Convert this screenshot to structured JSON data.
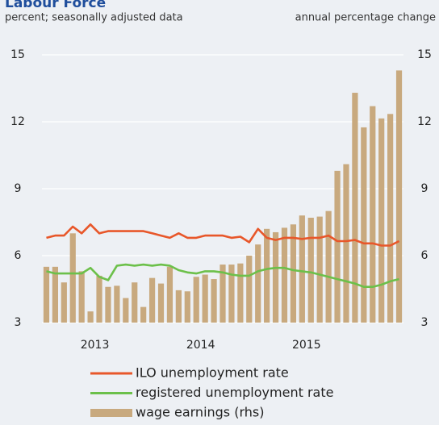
{
  "chart_data": {
    "type": "bar_line",
    "title": "Labour Force",
    "subtitle_left": "percent; seasonally adjusted data",
    "subtitle_right": "annual percentage change",
    "categories": [
      null,
      null,
      null,
      null,
      null,
      null,
      null,
      null,
      null,
      null,
      null,
      null,
      null,
      null,
      null,
      null,
      null,
      null,
      null,
      null,
      null,
      null,
      null,
      null,
      null,
      null,
      null,
      null,
      null,
      null,
      null,
      null,
      null,
      null,
      null,
      null,
      null,
      null,
      null,
      null,
      null
    ],
    "xticks": [
      {
        "value": 5.5,
        "label": "2013"
      },
      {
        "value": 17.5,
        "label": "2014"
      },
      {
        "value": 29.5,
        "label": "2015"
      }
    ],
    "ylim": [
      3,
      15
    ],
    "yticks": [
      3,
      6,
      9,
      12,
      15
    ],
    "y2lim": [
      3,
      15
    ],
    "y2ticks": [
      3,
      6,
      9,
      12,
      15
    ],
    "grid": true,
    "series": [
      {
        "name": "ILO unemployment rate",
        "type": "line",
        "color": "#e8572a",
        "values": [
          6.8,
          6.9,
          6.9,
          7.3,
          7.0,
          7.4,
          7.0,
          7.1,
          7.1,
          7.1,
          7.1,
          7.1,
          7.0,
          6.9,
          6.8,
          7.0,
          6.8,
          6.8,
          6.9,
          6.9,
          6.9,
          6.8,
          6.85,
          6.6,
          7.2,
          6.8,
          6.7,
          6.8,
          6.8,
          6.75,
          6.8,
          6.8,
          6.9,
          6.65,
          6.65,
          6.7,
          6.55,
          6.55,
          6.45,
          6.45,
          6.65
        ]
      },
      {
        "name": "registered unemployment rate",
        "type": "line",
        "color": "#6cc04a",
        "values": [
          5.3,
          5.2,
          5.2,
          5.2,
          5.2,
          5.45,
          5.05,
          4.9,
          5.55,
          5.6,
          5.55,
          5.6,
          5.55,
          5.6,
          5.55,
          5.35,
          5.25,
          5.2,
          5.3,
          5.3,
          5.25,
          5.15,
          5.1,
          5.1,
          5.3,
          5.4,
          5.45,
          5.45,
          5.35,
          5.3,
          5.25,
          5.15,
          5.05,
          4.95,
          4.85,
          4.75,
          4.6,
          4.6,
          4.7,
          4.85,
          4.95
        ]
      },
      {
        "name": "wage earnings (rhs)",
        "type": "bar",
        "axis": "y2",
        "color": "#c8a97e",
        "values": [
          5.5,
          5.5,
          4.8,
          7.0,
          5.3,
          3.5,
          5.1,
          4.6,
          4.65,
          4.1,
          4.8,
          3.7,
          5.0,
          4.75,
          5.5,
          4.45,
          4.4,
          5.05,
          5.15,
          4.95,
          5.6,
          5.6,
          5.65,
          6.0,
          6.5,
          7.2,
          7.05,
          7.25,
          7.4,
          7.8,
          7.7,
          7.75,
          8.0,
          9.8,
          10.1,
          13.3,
          11.75,
          12.7,
          12.15,
          12.35,
          14.3
        ]
      }
    ]
  }
}
